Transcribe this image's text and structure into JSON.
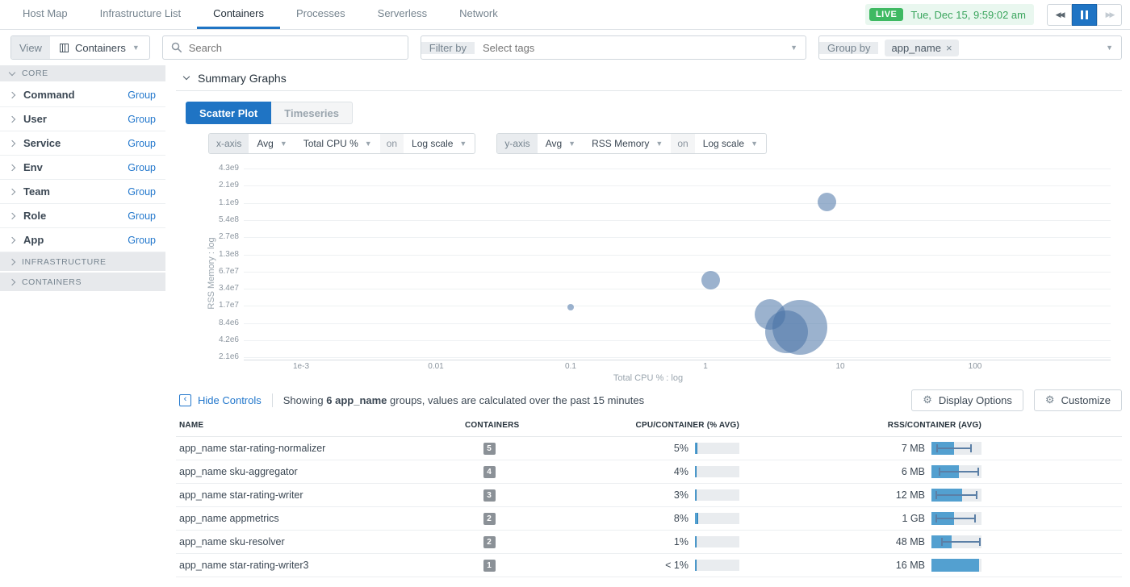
{
  "nav": {
    "tabs": [
      {
        "label": "Host Map",
        "active": false
      },
      {
        "label": "Infrastructure List",
        "active": false
      },
      {
        "label": "Containers",
        "active": true
      },
      {
        "label": "Processes",
        "active": false
      },
      {
        "label": "Serverless",
        "active": false
      },
      {
        "label": "Network",
        "active": false
      }
    ]
  },
  "time_controls": {
    "live_label": "LIVE",
    "timestamp": "Tue, Dec 15, 9:59:02 am"
  },
  "filter_bar": {
    "view_label": "View",
    "view_value": "Containers",
    "search_placeholder": "Search",
    "filter_by_label": "Filter by",
    "filter_placeholder": "Select tags",
    "group_by_label": "Group by",
    "group_tag": "app_name"
  },
  "icons": {
    "view": "columns-grid",
    "search": "magnifier",
    "rewind": "double-left-triangles",
    "pause": "pause-bars",
    "fast_forward": "double-right-triangles",
    "remove_tag": "×",
    "collapse": "chevron-left-box",
    "gear": "⚙"
  },
  "sidebar": {
    "core": {
      "label": "CORE",
      "items": [
        {
          "label": "Command",
          "action": "Group"
        },
        {
          "label": "User",
          "action": "Group"
        },
        {
          "label": "Service",
          "action": "Group"
        },
        {
          "label": "Env",
          "action": "Group"
        },
        {
          "label": "Team",
          "action": "Group"
        },
        {
          "label": "Role",
          "action": "Group"
        },
        {
          "label": "App",
          "action": "Group"
        }
      ]
    },
    "infrastructure_label": "INFRASTRUCTURE",
    "containers_label": "CONTAINERS"
  },
  "summary": {
    "title": "Summary Graphs",
    "tabs": [
      {
        "label": "Scatter Plot",
        "active": true
      },
      {
        "label": "Timeseries",
        "active": false
      }
    ]
  },
  "axis_controls": {
    "x": {
      "label": "x-axis",
      "agg": "Avg",
      "metric": "Total CPU %",
      "on_label": "on",
      "scale": "Log scale"
    },
    "y": {
      "label": "y-axis",
      "agg": "Avg",
      "metric": "RSS Memory",
      "on_label": "on",
      "scale": "Log scale"
    }
  },
  "chart_data": {
    "type": "scatter",
    "x_label": "Total CPU % : log",
    "y_label": "RSS Memory : log",
    "x_scale": "log",
    "y_scale": "log",
    "x_ticks": [
      "1e-3",
      "0.01",
      "0.1",
      "1",
      "10",
      "100"
    ],
    "y_ticks": [
      "4.3e9",
      "2.1e9",
      "1.1e9",
      "5.4e8",
      "2.7e8",
      "1.3e8",
      "6.7e7",
      "3.4e7",
      "1.7e7",
      "8.4e6",
      "4.2e6",
      "2.1e6"
    ],
    "y_max": 4300000000.0,
    "bubble_color": "rgba(72,115,165,0.55)",
    "points": [
      {
        "name": "app_name appmetrics",
        "cpu_pct": 8,
        "rss_bytes": 1100000000.0,
        "containers": 2
      },
      {
        "name": "app_name sku-resolver",
        "cpu_pct": 1.1,
        "rss_bytes": 48000000.0,
        "containers": 2
      },
      {
        "name": "app_name star-rating-writer",
        "cpu_pct": 3,
        "rss_bytes": 12000000.0,
        "containers": 3
      },
      {
        "name": "app_name star-rating-normalizer",
        "cpu_pct": 5,
        "rss_bytes": 7000000.0,
        "containers": 5
      },
      {
        "name": "app_name sku-aggregator",
        "cpu_pct": 4,
        "rss_bytes": 6000000.0,
        "containers": 4
      },
      {
        "name": "app_name star-rating-writer3",
        "cpu_pct": 0.1,
        "rss_bytes": 16000000.0,
        "containers": 1
      }
    ]
  },
  "controls_row": {
    "hide_controls_label": "Hide Controls",
    "showing_prefix": "Showing",
    "showing_bold": "6 app_name",
    "showing_suffix": "groups, values are calculated over the past 15 minutes",
    "display_options_label": "Display Options",
    "customize_label": "Customize"
  },
  "table": {
    "headers": [
      "NAME",
      "CONTAINERS",
      "CPU/CONTAINER (% AVG)",
      "RSS/CONTAINER (AVG)"
    ],
    "rows": [
      {
        "name": "app_name star-rating-normalizer",
        "containers": "5",
        "cpu": "5%",
        "cpu_fill_pct": 5,
        "rss": "7 MB",
        "rss_bar": {
          "fill_pct": 45,
          "lo_pct": 10,
          "hi_pct": 78
        }
      },
      {
        "name": "app_name sku-aggregator",
        "containers": "4",
        "cpu": "4%",
        "cpu_fill_pct": 4,
        "rss": "6 MB",
        "rss_bar": {
          "fill_pct": 55,
          "lo_pct": 15,
          "hi_pct": 92
        }
      },
      {
        "name": "app_name star-rating-writer",
        "containers": "3",
        "cpu": "3%",
        "cpu_fill_pct": 3,
        "rss": "12 MB",
        "rss_bar": {
          "fill_pct": 62,
          "lo_pct": 8,
          "hi_pct": 88
        }
      },
      {
        "name": "app_name appmetrics",
        "containers": "2",
        "cpu": "8%",
        "cpu_fill_pct": 8,
        "rss": "1 GB",
        "rss_bar": {
          "fill_pct": 45,
          "lo_pct": 8,
          "hi_pct": 85
        }
      },
      {
        "name": "app_name sku-resolver",
        "containers": "2",
        "cpu": "1%",
        "cpu_fill_pct": 1,
        "rss": "48 MB",
        "rss_bar": {
          "fill_pct": 40,
          "lo_pct": 20,
          "hi_pct": 95
        }
      },
      {
        "name": "app_name star-rating-writer3",
        "containers": "1",
        "cpu": "< 1%",
        "cpu_fill_pct": 0.5,
        "rss": "16 MB",
        "rss_bar": {
          "fill_pct": 95,
          "lo_pct": null,
          "hi_pct": null
        }
      }
    ]
  },
  "colors": {
    "accent_blue": "#1f74c4",
    "bar_blue": "#53a0d0",
    "live_green": "#3eb962",
    "bubble_fill": "#4a73a5",
    "link_blue": "#2277cc"
  }
}
